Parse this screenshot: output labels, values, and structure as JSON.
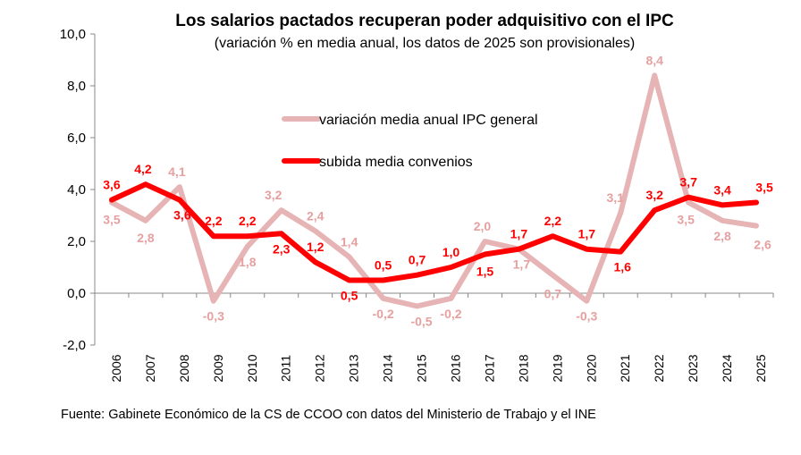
{
  "chart_data": {
    "type": "line",
    "title": "Los salarios pactados recuperan poder adquisitivo con el IPC",
    "subtitle": "(variación % en media anual, los datos de 2025 son provisionales)",
    "source": "Fuente: Gabinete Económico de la CS de CCOO con datos del Ministerio de Trabajo y el INE",
    "categories": [
      "2006",
      "2007",
      "2008",
      "2009",
      "2010",
      "2011",
      "2012",
      "2013",
      "2014",
      "2015",
      "2016",
      "2017",
      "2018",
      "2019",
      "2020",
      "2021",
      "2022",
      "2023",
      "2024",
      "2025"
    ],
    "ylim": [
      -2,
      10
    ],
    "yticks": [
      -2,
      0,
      2,
      4,
      6,
      8,
      10
    ],
    "ytick_labels": [
      "-2,0",
      "0,0",
      "2,0",
      "4,0",
      "6,0",
      "8,0",
      "10,0"
    ],
    "grid": false,
    "legend_position": "center-left",
    "series": [
      {
        "name": "variación media anual IPC general",
        "color": "#e6b4b4",
        "values": [
          3.5,
          2.8,
          4.1,
          -0.3,
          1.8,
          3.2,
          2.4,
          1.4,
          -0.2,
          -0.5,
          -0.2,
          2.0,
          1.7,
          0.7,
          -0.3,
          3.1,
          8.4,
          3.5,
          2.8,
          2.6
        ],
        "labels": [
          "3,5",
          "2,8",
          "4,1",
          "-0,3",
          "1,8",
          "3,2",
          "2,4",
          "1,4",
          "-0,2",
          "-0,5",
          "-0,2",
          "2,0",
          "1,7",
          "0,7",
          "-0,3",
          "3,1",
          "8,4",
          "3,5",
          "2,8",
          "2,6"
        ]
      },
      {
        "name": "subida media convenios",
        "color": "#ff0000",
        "values": [
          3.6,
          4.2,
          3.6,
          2.2,
          2.2,
          2.3,
          1.2,
          0.5,
          0.5,
          0.7,
          1.0,
          1.5,
          1.7,
          2.2,
          1.7,
          1.6,
          3.2,
          3.7,
          3.4,
          3.5
        ],
        "labels": [
          "3,6",
          "4,2",
          "3,6",
          "2,2",
          "2,2",
          "2,3",
          "1,2",
          "0,5",
          "0,5",
          "0,7",
          "1,0",
          "1,5",
          "1,7",
          "2,2",
          "1,7",
          "1,6",
          "3,2",
          "3,7",
          "3,4",
          "3,5"
        ]
      }
    ]
  }
}
